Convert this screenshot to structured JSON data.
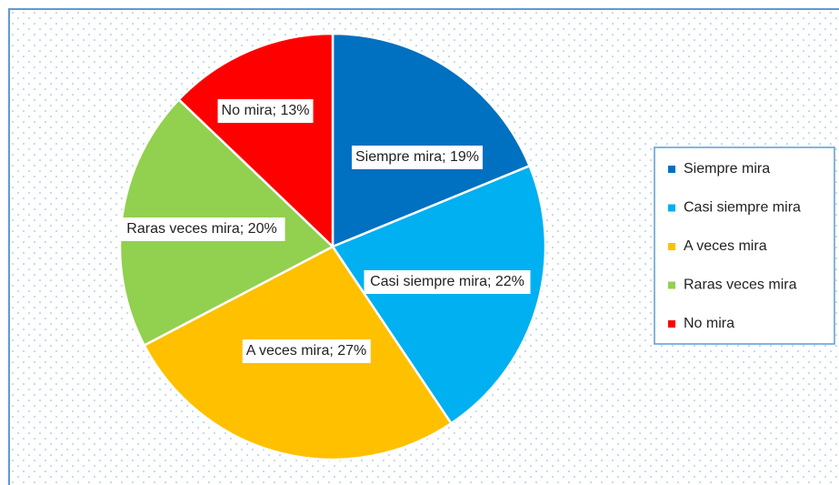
{
  "chart_data": {
    "type": "pie",
    "categories": [
      "Siempre mira",
      "Casi siempre mira",
      "A veces mira",
      "Raras veces mira",
      "No mira"
    ],
    "values": [
      19,
      22,
      27,
      20,
      13
    ],
    "value_labels": [
      "Siempre mira; 19%",
      "Casi siempre mira; 22%",
      "A veces mira; 27%",
      "Raras veces mira; 20%",
      "No mira; 13%"
    ],
    "colors": [
      "#0070c0",
      "#00b0f0",
      "#ffc000",
      "#92d050",
      "#ff0000"
    ],
    "legend": "right"
  }
}
